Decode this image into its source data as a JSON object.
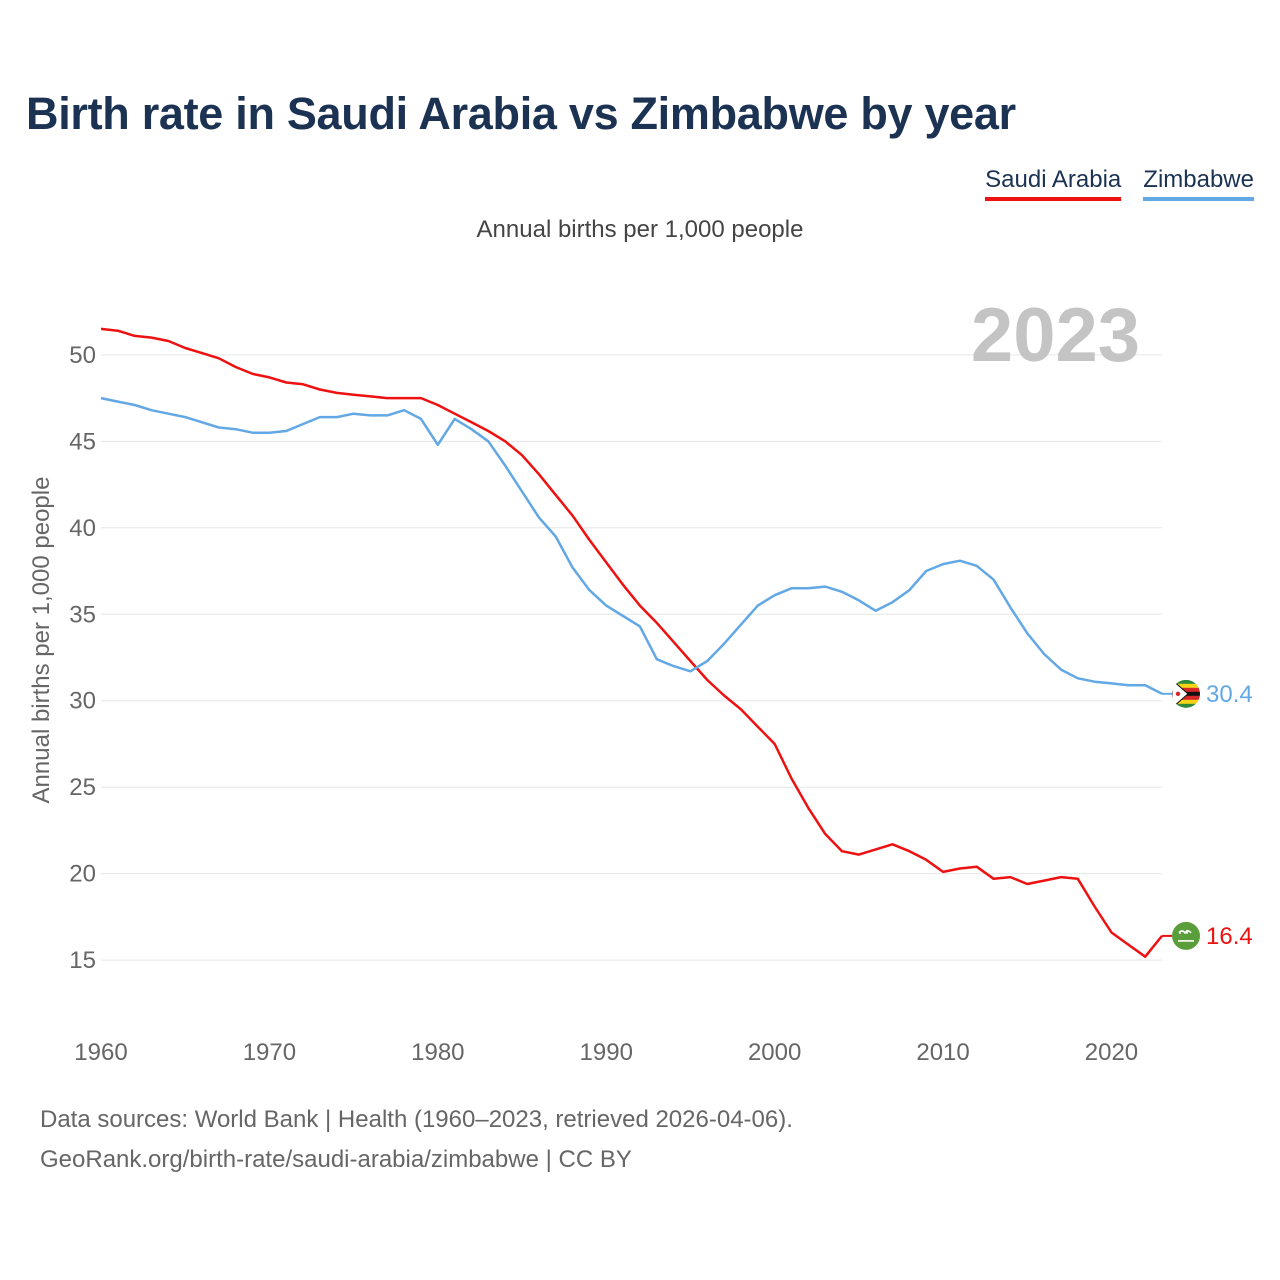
{
  "title": "Birth rate in Saudi Arabia vs Zimbabwe by year",
  "subtitle": "Annual births per 1,000 people",
  "footer": {
    "line1": "Data sources: World Bank | Health (1960–2023, retrieved 2026-04-06).",
    "line2": "GeoRank.org/birth-rate/saudi-arabia/zimbabwe | CC BY"
  },
  "chart_data": {
    "type": "line",
    "title": "Birth rate in Saudi Arabia vs Zimbabwe by year",
    "subtitle": "Annual births per 1,000 people",
    "xlabel": "",
    "ylabel": "Annual births per 1,000 people",
    "year_overlay": "2023",
    "xlim": [
      1960,
      2023
    ],
    "ylim": [
      12,
      53
    ],
    "x_ticks": [
      1960,
      1970,
      1980,
      1990,
      2000,
      2010,
      2020
    ],
    "y_ticks": [
      15,
      20,
      25,
      30,
      35,
      40,
      45,
      50
    ],
    "grid": true,
    "legend_position": "top-right",
    "series": [
      {
        "name": "Saudi Arabia",
        "color": "#ee1111",
        "end_label": "16.4",
        "marker_icon": "saudi-arabia-flag-icon",
        "x": [
          1960,
          1961,
          1962,
          1963,
          1964,
          1965,
          1966,
          1967,
          1968,
          1969,
          1970,
          1971,
          1972,
          1973,
          1974,
          1975,
          1976,
          1977,
          1978,
          1979,
          1980,
          1981,
          1982,
          1983,
          1984,
          1985,
          1986,
          1987,
          1988,
          1989,
          1990,
          1991,
          1992,
          1993,
          1994,
          1995,
          1996,
          1997,
          1998,
          1999,
          2000,
          2001,
          2002,
          2003,
          2004,
          2005,
          2006,
          2007,
          2008,
          2009,
          2010,
          2011,
          2012,
          2013,
          2014,
          2015,
          2016,
          2017,
          2018,
          2019,
          2020,
          2021,
          2022,
          2023
        ],
        "values": [
          51.5,
          51.4,
          51.1,
          51.0,
          50.8,
          50.4,
          50.1,
          49.8,
          49.3,
          48.9,
          48.7,
          48.4,
          48.3,
          48.0,
          47.8,
          47.7,
          47.6,
          47.5,
          47.5,
          47.5,
          47.1,
          46.6,
          46.1,
          45.6,
          45.0,
          44.2,
          43.1,
          41.9,
          40.7,
          39.3,
          38.0,
          36.7,
          35.5,
          34.5,
          33.4,
          32.3,
          31.2,
          30.3,
          29.5,
          28.5,
          27.5,
          25.5,
          23.8,
          22.3,
          21.3,
          21.1,
          21.4,
          21.7,
          21.3,
          20.8,
          20.1,
          20.3,
          20.4,
          19.7,
          19.8,
          19.4,
          19.6,
          19.8,
          19.7,
          18.1,
          16.6,
          15.9,
          15.2,
          16.4
        ]
      },
      {
        "name": "Zimbabwe",
        "color": "#62a8e5",
        "end_label": "30.4",
        "marker_icon": "zimbabwe-flag-icon",
        "x": [
          1960,
          1961,
          1962,
          1963,
          1964,
          1965,
          1966,
          1967,
          1968,
          1969,
          1970,
          1971,
          1972,
          1973,
          1974,
          1975,
          1976,
          1977,
          1978,
          1979,
          1980,
          1981,
          1982,
          1983,
          1984,
          1985,
          1986,
          1987,
          1988,
          1989,
          1990,
          1991,
          1992,
          1993,
          1994,
          1995,
          1996,
          1997,
          1998,
          1999,
          2000,
          2001,
          2002,
          2003,
          2004,
          2005,
          2006,
          2007,
          2008,
          2009,
          2010,
          2011,
          2012,
          2013,
          2014,
          2015,
          2016,
          2017,
          2018,
          2019,
          2020,
          2021,
          2022,
          2023
        ],
        "values": [
          47.5,
          47.3,
          47.1,
          46.8,
          46.6,
          46.4,
          46.1,
          45.8,
          45.7,
          45.5,
          45.5,
          45.6,
          46.0,
          46.4,
          46.4,
          46.6,
          46.5,
          46.5,
          46.8,
          46.3,
          44.8,
          46.3,
          45.7,
          45.0,
          43.6,
          42.1,
          40.6,
          39.5,
          37.7,
          36.4,
          35.5,
          34.9,
          34.3,
          32.4,
          32.0,
          31.7,
          32.3,
          33.3,
          34.4,
          35.5,
          36.1,
          36.5,
          36.5,
          36.6,
          36.3,
          35.8,
          35.2,
          35.7,
          36.4,
          37.5,
          37.9,
          38.1,
          37.8,
          37.0,
          35.4,
          33.9,
          32.7,
          31.8,
          31.3,
          31.1,
          31.0,
          30.9,
          30.9,
          30.4
        ]
      }
    ]
  }
}
